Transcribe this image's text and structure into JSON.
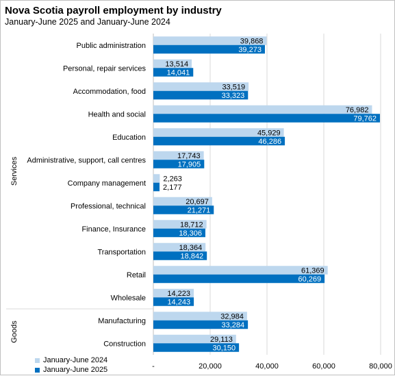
{
  "title": "Nova Scotia payroll employment by industry",
  "subtitle": "January-June 2025 and January-June 2024",
  "legend": [
    {
      "label": "January-June 2024",
      "color": "#bdd7ee"
    },
    {
      "label": "January-June 2025",
      "color": "#0070c0"
    }
  ],
  "chart_data": {
    "type": "bar",
    "orientation": "horizontal",
    "categories": [
      "Public administration",
      "Personal, repair services",
      "Accommodation, food",
      "Health and social",
      "Education",
      "Administrative, support, call centres",
      "Company management",
      "Professional, technical",
      "Finance, Insurance",
      "Transportation",
      "Retail",
      "Wholesale",
      "Manufacturing",
      "Construction"
    ],
    "groups": [
      {
        "label": "Services",
        "from": 0,
        "to": 11
      },
      {
        "label": "Goods",
        "from": 12,
        "to": 13
      }
    ],
    "series": [
      {
        "name": "January-June 2024",
        "color": "#bdd7ee",
        "values": [
          39868,
          13514,
          33519,
          76982,
          45929,
          17743,
          2263,
          20697,
          18712,
          18364,
          61369,
          14223,
          32984,
          29113
        ],
        "labels": [
          "39,868",
          "13,514",
          "33,519",
          "76,982",
          "45,929",
          "17,743",
          "2,263",
          "20,697",
          "18,712",
          "18,364",
          "61,369",
          "14,223",
          "32,984",
          "29,113"
        ]
      },
      {
        "name": "January-June 2025",
        "color": "#0070c0",
        "values": [
          39273,
          14041,
          33323,
          79762,
          46286,
          17905,
          2177,
          21271,
          18306,
          18842,
          60269,
          14243,
          33284,
          30150
        ],
        "labels": [
          "39,273",
          "14,041",
          "33,323",
          "79,762",
          "46,286",
          "17,905",
          "2,177",
          "21,271",
          "18,306",
          "18,842",
          "60,269",
          "14,243",
          "33,284",
          "30,150"
        ]
      }
    ],
    "xlim": [
      0,
      80000
    ],
    "x_ticks": [
      0,
      20000,
      40000,
      60000,
      80000
    ],
    "x_tick_labels": [
      "-",
      "20,000",
      "40,000",
      "60,000",
      "80,000"
    ],
    "grid": "vertical",
    "legend_position": "bottom-left"
  }
}
